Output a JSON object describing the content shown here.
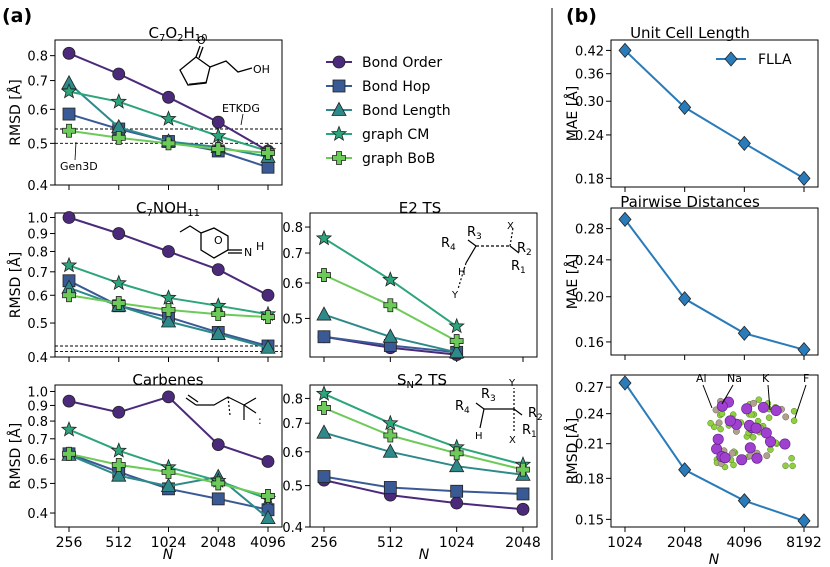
{
  "panel_labels": {
    "a": "(a)",
    "b": "(b)"
  },
  "shared_x_label": "N",
  "legend_a": [
    {
      "name": "Bond Order",
      "color": "#4b2a7b",
      "marker": "circle"
    },
    {
      "name": "Bond Hop",
      "color": "#3a5a96",
      "marker": "square"
    },
    {
      "name": "Bond Length",
      "color": "#2e8a8a",
      "marker": "triangle"
    },
    {
      "name": "graph CM",
      "color": "#2da57a",
      "marker": "star"
    },
    {
      "name": "graph BoB",
      "color": "#6ccb58",
      "marker": "plus"
    }
  ],
  "legend_b": [
    {
      "name": "FLLA",
      "color": "#2a7bba",
      "marker": "diamond"
    }
  ],
  "annotations": {
    "etkdg": "ETKDG",
    "gen3d": "Gen3D",
    "mol_oh": "OH",
    "mol_o": "O",
    "mol_n": "N",
    "mol_h": "H",
    "ts_x": "X",
    "ts_y": "Y",
    "ts_h": "H",
    "ts_r1": "R",
    "ts_r2": "R",
    "ts_r3": "R",
    "ts_r4": "R",
    "sub_1": "1",
    "sub_2": "2",
    "sub_3": "3",
    "sub_4": "4",
    "el_al": "Al",
    "el_na": "Na",
    "el_k": "K",
    "el_f": "F"
  },
  "chart_data": [
    {
      "id": "c7o2h10",
      "type": "line",
      "title": "C7O2H10",
      "xlabel": "",
      "ylabel": "RMSD [Å]",
      "yscale": "log",
      "ylim": [
        0.4,
        0.87
      ],
      "yticks": [
        0.4,
        0.5,
        0.6,
        0.7,
        0.8
      ],
      "x": [
        256,
        512,
        1024,
        2048,
        4096
      ],
      "xticks": [],
      "reference_lines": [
        {
          "name": "ETKDG",
          "value": 0.54
        },
        {
          "name": "Gen3D",
          "value": 0.5
        }
      ],
      "series": [
        {
          "name": "Bond Order",
          "values": [
            0.81,
            0.725,
            0.64,
            0.56,
            0.48
          ]
        },
        {
          "name": "Bond Hop",
          "values": [
            0.585,
            0.54,
            0.505,
            0.48,
            0.44
          ]
        },
        {
          "name": "Bond Length",
          "values": [
            0.69,
            0.545,
            0.505,
            0.49,
            0.465
          ]
        },
        {
          "name": "graph CM",
          "values": [
            0.66,
            0.625,
            0.57,
            0.52,
            0.48
          ]
        },
        {
          "name": "graph BoB",
          "values": [
            0.535,
            0.515,
            0.5,
            0.485,
            0.475
          ]
        }
      ]
    },
    {
      "id": "c7noh11",
      "type": "line",
      "title": "C7NOH11",
      "xlabel": "",
      "ylabel": "RMSD [Å]",
      "yscale": "log",
      "ylim": [
        0.4,
        1.03
      ],
      "yticks": [
        0.4,
        0.5,
        0.6,
        0.7,
        0.8,
        0.9,
        1.0
      ],
      "x": [
        256,
        512,
        1024,
        2048,
        4096
      ],
      "xticks": [],
      "reference_lines": [
        {
          "name": "ETKDG",
          "value": 0.43
        },
        {
          "name": "Gen3D",
          "value": 0.415
        }
      ],
      "series": [
        {
          "name": "Bond Order",
          "values": [
            1.0,
            0.9,
            0.8,
            0.71,
            0.6
          ]
        },
        {
          "name": "Bond Hop",
          "values": [
            0.66,
            0.56,
            0.52,
            0.47,
            0.43
          ]
        },
        {
          "name": "Bond Length",
          "values": [
            0.63,
            0.56,
            0.505,
            0.465,
            0.425
          ]
        },
        {
          "name": "graph CM",
          "values": [
            0.73,
            0.65,
            0.59,
            0.56,
            0.53
          ]
        },
        {
          "name": "graph BoB",
          "values": [
            0.6,
            0.57,
            0.545,
            0.53,
            0.52
          ]
        }
      ]
    },
    {
      "id": "e2ts",
      "type": "line",
      "title": "E2 TS",
      "xlabel": "",
      "ylabel": "",
      "yscale": "log",
      "ylim": [
        0.41,
        0.86
      ],
      "yticks": [
        0.5,
        0.6,
        0.7,
        0.8
      ],
      "x": [
        256,
        512,
        1024,
        2048
      ],
      "xticks": [],
      "reference_lines": [],
      "series": [
        {
          "name": "Bond Order",
          "values": [
            0.455,
            0.43,
            0.415,
            null
          ]
        },
        {
          "name": "Bond Hop",
          "values": [
            0.455,
            0.435,
            0.42,
            null
          ]
        },
        {
          "name": "Bond Length",
          "values": [
            0.51,
            0.455,
            0.42,
            null
          ]
        },
        {
          "name": "graph CM",
          "values": [
            0.755,
            0.61,
            0.48,
            null
          ]
        },
        {
          "name": "graph BoB",
          "values": [
            0.625,
            0.535,
            0.445,
            null
          ]
        }
      ]
    },
    {
      "id": "carbenes",
      "type": "line",
      "title": "Carbenes",
      "xlabel": "N",
      "ylabel": "RMSD [Å]",
      "yscale": "log",
      "ylim": [
        0.36,
        1.05
      ],
      "yticks": [
        0.4,
        0.5,
        0.6,
        0.7,
        0.8,
        0.9,
        1.0
      ],
      "x": [
        256,
        512,
        1024,
        2048,
        4096
      ],
      "xticks": [
        "256",
        "512",
        "1024",
        "2048",
        "4096"
      ],
      "reference_lines": [],
      "series": [
        {
          "name": "Bond Order",
          "values": [
            0.93,
            0.855,
            0.96,
            0.67,
            0.59
          ]
        },
        {
          "name": "Bond Hop",
          "values": [
            0.625,
            0.545,
            0.48,
            0.445,
            0.41
          ]
        },
        {
          "name": "Bond Length",
          "values": [
            0.62,
            0.53,
            0.49,
            0.525,
            0.385
          ]
        },
        {
          "name": "graph CM",
          "values": [
            0.75,
            0.64,
            0.565,
            0.51,
            0.445
          ]
        },
        {
          "name": "graph BoB",
          "values": [
            0.625,
            0.575,
            0.545,
            0.5,
            0.455
          ]
        }
      ]
    },
    {
      "id": "sn2ts",
      "type": "line",
      "title": "SN2 TS",
      "xlabel": "N",
      "ylabel": "",
      "yscale": "log",
      "ylim": [
        0.4,
        0.86
      ],
      "yticks": [
        0.4,
        0.5,
        0.6,
        0.7,
        0.8
      ],
      "x": [
        256,
        512,
        1024,
        2048
      ],
      "xticks": [
        "256",
        "512",
        "1024",
        "2048"
      ],
      "reference_lines": [],
      "series": [
        {
          "name": "Bond Order",
          "values": [
            0.515,
            0.475,
            0.455,
            0.44
          ]
        },
        {
          "name": "Bond Hop",
          "values": [
            0.525,
            0.495,
            0.485,
            0.478
          ]
        },
        {
          "name": "Bond Length",
          "values": [
            0.665,
            0.6,
            0.555,
            0.53
          ]
        },
        {
          "name": "graph CM",
          "values": [
            0.82,
            0.7,
            0.615,
            0.56
          ]
        },
        {
          "name": "graph BoB",
          "values": [
            0.76,
            0.655,
            0.595,
            0.545
          ]
        }
      ]
    },
    {
      "id": "unitcell",
      "type": "line",
      "title": "Unit Cell Length",
      "xlabel": "",
      "ylabel": "MAE [Å]",
      "yscale": "log",
      "ylim": [
        0.17,
        0.45
      ],
      "yticks": [
        0.18,
        0.24,
        0.3,
        0.36,
        0.42
      ],
      "ytick_labels": [
        "0.18",
        "0.24",
        "0.30",
        "0.36",
        "0.42"
      ],
      "x": [
        1024,
        2048,
        4096,
        8192
      ],
      "xticks": [],
      "reference_lines": [],
      "series": [
        {
          "name": "FLLA",
          "values": [
            0.42,
            0.288,
            0.227,
            0.18
          ]
        }
      ]
    },
    {
      "id": "pairwise",
      "type": "line",
      "title": "Pairwise Distances",
      "xlabel": "",
      "ylabel": "MAE [Å]",
      "yscale": "log",
      "ylim": [
        0.15,
        0.31
      ],
      "yticks": [
        0.16,
        0.2,
        0.24,
        0.28
      ],
      "ytick_labels": [
        "0.16",
        "0.20",
        "0.24",
        "0.28"
      ],
      "x": [
        1024,
        2048,
        4096,
        8192
      ],
      "xticks": [],
      "reference_lines": [],
      "series": [
        {
          "name": "FLLA",
          "values": [
            0.293,
            0.198,
            0.167,
            0.154
          ]
        }
      ]
    },
    {
      "id": "rmsd_flla",
      "type": "line",
      "title": "",
      "xlabel": "N",
      "ylabel": "RMSD [Å]",
      "yscale": "log",
      "ylim": [
        0.145,
        0.285
      ],
      "yticks": [
        0.15,
        0.18,
        0.21,
        0.24,
        0.27
      ],
      "ytick_labels": [
        "0.15",
        "0.18",
        "0.21",
        "0.24",
        "0.27"
      ],
      "x": [
        1024,
        2048,
        4096,
        8192
      ],
      "xticks": [
        "1024",
        "2048",
        "4096",
        "8192"
      ],
      "reference_lines": [],
      "series": [
        {
          "name": "FLLA",
          "values": [
            0.275,
            0.187,
            0.163,
            0.149
          ]
        }
      ]
    }
  ]
}
